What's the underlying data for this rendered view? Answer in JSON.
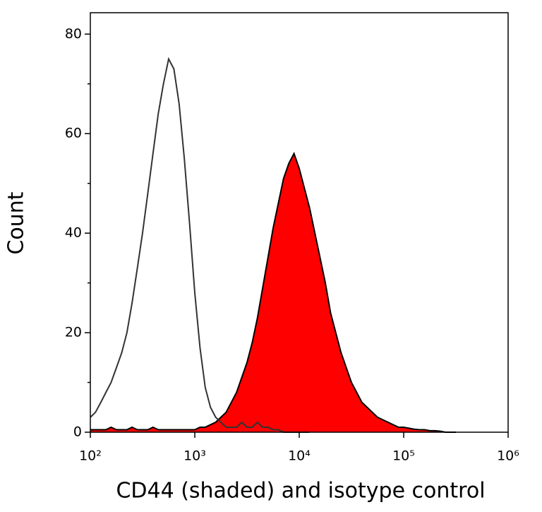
{
  "chart_data": {
    "type": "histogram-overlay",
    "xlabel": "CD44 (shaded) and isotype control",
    "ylabel": "Count",
    "xscale": "log",
    "xlim": [
      100,
      1000000
    ],
    "ylim": [
      0,
      84.3
    ],
    "xticks": [
      {
        "value": 100,
        "label": "10²"
      },
      {
        "value": 1000,
        "label": "10³"
      },
      {
        "value": 10000,
        "label": "10⁴"
      },
      {
        "value": 100000,
        "label": "10⁵"
      },
      {
        "value": 1000000,
        "label": "10⁶"
      }
    ],
    "yticks": [
      0,
      20,
      40,
      60,
      80
    ],
    "yminorticks": [
      10,
      30,
      50,
      70
    ],
    "x": [
      100,
      112,
      126,
      141,
      158,
      178,
      200,
      224,
      251,
      282,
      316,
      355,
      398,
      447,
      501,
      562,
      631,
      708,
      794,
      891,
      1000,
      1122,
      1259,
      1413,
      1585,
      1778,
      1995,
      2239,
      2512,
      2818,
      3162,
      3548,
      3981,
      4467,
      5012,
      5623,
      6310,
      7079,
      7943,
      8913,
      10000,
      11220,
      12589,
      14125,
      15849,
      17783,
      19953,
      22387,
      25119,
      28184,
      31623,
      35481,
      39811,
      44668,
      50119,
      56234,
      63096,
      70795,
      79433,
      89125,
      100000,
      112202,
      125893,
      141254,
      158489,
      177828,
      199526,
      223872,
      251189,
      281838,
      316228
    ],
    "series": [
      {
        "style": "shaded",
        "color": "#ff0000",
        "edge": "#000000",
        "values": [
          0.5,
          0.5,
          0.5,
          0.5,
          1,
          0.5,
          0.5,
          0.5,
          1,
          0.5,
          0.5,
          0.5,
          1,
          0.5,
          0.5,
          0.5,
          0.5,
          0.5,
          0.5,
          0.5,
          0.5,
          1,
          1,
          1.5,
          2,
          3,
          4,
          6,
          8,
          11,
          14,
          18,
          23,
          29,
          35,
          41,
          46,
          51,
          54,
          56,
          53,
          49,
          45,
          40,
          35,
          30,
          24,
          20,
          16,
          13,
          10,
          8,
          6,
          5,
          4,
          3,
          2.5,
          2,
          1.5,
          1,
          1,
          0.8,
          0.6,
          0.5,
          0.5,
          0.3,
          0.3,
          0.2,
          0,
          0,
          0
        ]
      },
      {
        "style": "outline",
        "color": "#333333",
        "values": [
          3,
          4,
          6,
          8,
          10,
          13,
          16,
          20,
          26,
          33,
          40,
          48,
          56,
          64,
          70,
          75,
          73,
          66,
          55,
          42,
          28,
          17,
          9,
          5,
          3,
          2,
          1,
          1,
          1,
          2,
          1,
          1,
          2,
          1,
          1,
          0.5,
          0.5,
          0,
          0,
          0,
          0,
          0,
          0,
          null,
          null,
          null,
          null,
          null,
          null,
          null,
          null,
          null,
          null,
          null,
          null,
          null,
          null,
          null,
          null,
          null,
          null,
          null,
          null,
          null,
          null,
          null,
          null,
          null,
          null,
          null,
          null
        ]
      }
    ]
  }
}
